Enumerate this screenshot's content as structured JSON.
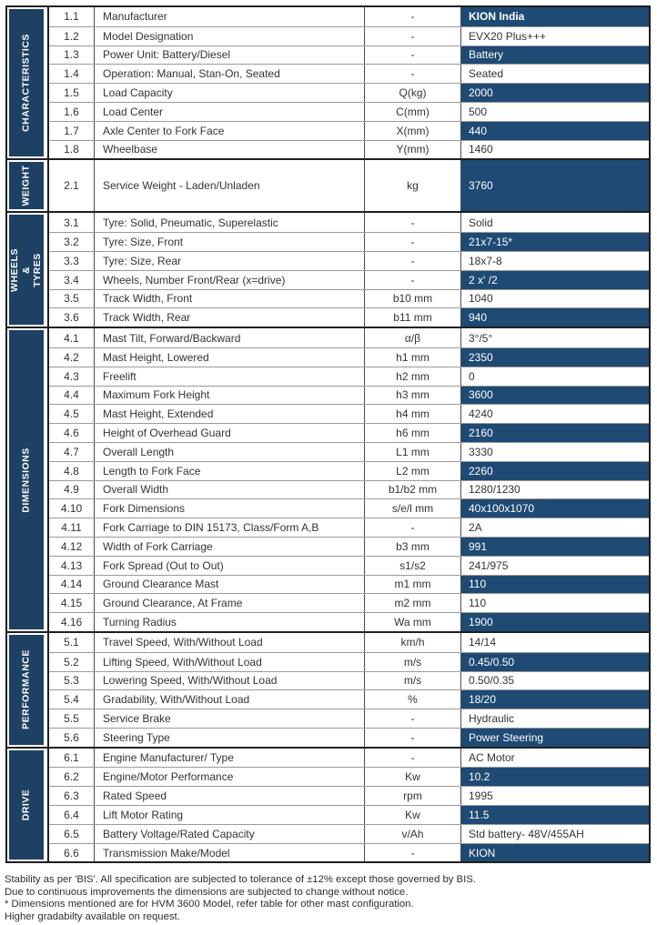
{
  "colors": {
    "sidebar_navy": "#1e4063",
    "value_cell_blue": "#1e4a74",
    "border_dark": "#1f1f1f",
    "row_divider_gray": "#9a9a9a",
    "text": "#333333"
  },
  "sections": [
    {
      "label": "CHARACTERISTICS",
      "rows": [
        {
          "num": "1.1",
          "label": "Manufacturer",
          "unit": "-",
          "value": "KION India",
          "highlight": true,
          "bold": true
        },
        {
          "num": "1.2",
          "label": "Model Designation",
          "unit": "-",
          "value": "EVX20 Plus+++",
          "highlight": false
        },
        {
          "num": "1.3",
          "label": "Power Unit: Battery/Diesel",
          "unit": "-",
          "value": "Battery",
          "highlight": true
        },
        {
          "num": "1.4",
          "label": "Operation: Manual, Stan-On, Seated",
          "unit": "-",
          "value": "Seated",
          "highlight": false
        },
        {
          "num": "1.5",
          "label": "Load Capacity",
          "unit": "Q(kg)",
          "value": "2000",
          "highlight": true
        },
        {
          "num": "1.6",
          "label": "Load Center",
          "unit": "C(mm)",
          "value": "500",
          "highlight": false
        },
        {
          "num": "1.7",
          "label": "Axle Center to Fork Face",
          "unit": "X(mm)",
          "value": "440",
          "highlight": true
        },
        {
          "num": "1.8",
          "label": "Wheelbase",
          "unit": "Y(mm)",
          "value": "1460",
          "highlight": false
        }
      ]
    },
    {
      "label": "WEIGHT",
      "rows": [
        {
          "num": "2.1",
          "label": "Service Weight - Laden/Unladen",
          "unit": "kg",
          "value": "3760",
          "highlight": true,
          "tall": true
        }
      ]
    },
    {
      "label": "WHEELS &\nTYRES",
      "rows": [
        {
          "num": "3.1",
          "label": "Tyre: Solid, Pneumatic, Superelastic",
          "unit": "-",
          "value": "Solid",
          "highlight": false
        },
        {
          "num": "3.2",
          "label": "Tyre: Size, Front",
          "unit": "-",
          "value": "21x7-15*",
          "highlight": true
        },
        {
          "num": "3.3",
          "label": "Tyre: Size, Rear",
          "unit": "-",
          "value": "18x7-8",
          "highlight": false
        },
        {
          "num": "3.4",
          "label": "Wheels, Number Front/Rear (x=drive)",
          "unit": "-",
          "value": "2 x' /2",
          "highlight": true
        },
        {
          "num": "3.5",
          "label": "Track Width, Front",
          "unit": "b10 mm",
          "value": "1040",
          "highlight": false
        },
        {
          "num": "3.6",
          "label": "Track Width, Rear",
          "unit": "b11 mm",
          "value": "940",
          "highlight": true
        }
      ]
    },
    {
      "label": "DIMENSIONS",
      "rows": [
        {
          "num": "4.1",
          "label": "Mast Tilt, Forward/Backward",
          "unit": "α/β",
          "value": "3°/5°",
          "highlight": false
        },
        {
          "num": "4.2",
          "label": "Mast Height, Lowered",
          "unit": "h1 mm",
          "value": "2350",
          "highlight": true
        },
        {
          "num": "4.3",
          "label": "Freelift",
          "unit": "h2 mm",
          "value": "0",
          "highlight": false
        },
        {
          "num": "4.4",
          "label": "Maximum Fork Height",
          "unit": "h3 mm",
          "value": "3600",
          "highlight": true
        },
        {
          "num": "4.5",
          "label": "Mast Height, Extended",
          "unit": "h4 mm",
          "value": "4240",
          "highlight": false
        },
        {
          "num": "4.6",
          "label": "Height of Overhead Guard",
          "unit": "h6 mm",
          "value": "2160",
          "highlight": true
        },
        {
          "num": "4.7",
          "label": "Overall Length",
          "unit": "L1 mm",
          "value": "3330",
          "highlight": false
        },
        {
          "num": "4.8",
          "label": "Length to Fork Face",
          "unit": "L2 mm",
          "value": "2260",
          "highlight": true
        },
        {
          "num": "4.9",
          "label": "Overall Width",
          "unit": "b1/b2 mm",
          "value": "1280/1230",
          "highlight": false
        },
        {
          "num": "4.10",
          "label": "Fork Dimensions",
          "unit": "s/e/l mm",
          "value": "40x100x1070",
          "highlight": true
        },
        {
          "num": "4.11",
          "label": "Fork Carriage to DIN 15173, Class/Form A,B",
          "unit": "-",
          "value": "2A",
          "highlight": false
        },
        {
          "num": "4.12",
          "label": "Width of Fork Carriage",
          "unit": "b3 mm",
          "value": "991",
          "highlight": true
        },
        {
          "num": "4.13",
          "label": "Fork Spread (Out to Out)",
          "unit": "s1/s2",
          "value": "241/975",
          "highlight": false
        },
        {
          "num": "4.14",
          "label": "Ground Clearance Mast",
          "unit": "m1 mm",
          "value": "110",
          "highlight": true
        },
        {
          "num": "4.15",
          "label": "Ground Clearance, At Frame",
          "unit": "m2 mm",
          "value": "110",
          "highlight": false
        },
        {
          "num": "4.16",
          "label": "Turning Radius",
          "unit": "Wa mm",
          "value": "1900",
          "highlight": true
        }
      ]
    },
    {
      "label": "PERFORMANCE",
      "rows": [
        {
          "num": "5.1",
          "label": "Travel Speed, With/Without Load",
          "unit": "km/h",
          "value": "14/14",
          "highlight": false
        },
        {
          "num": "5.2",
          "label": "Lifting Speed, With/Without Load",
          "unit": "m/s",
          "value": "0.45/0.50",
          "highlight": true
        },
        {
          "num": "5.3",
          "label": "Lowering Speed, With/Without Load",
          "unit": "m/s",
          "value": "0.50/0.35",
          "highlight": false
        },
        {
          "num": "5.4",
          "label": "Gradability, With/Without Load",
          "unit": "%",
          "value": "18/20",
          "highlight": true
        },
        {
          "num": "5.5",
          "label": "Service Brake",
          "unit": "-",
          "value": "Hydraulic",
          "highlight": false
        },
        {
          "num": "5.6",
          "label": "Steering Type",
          "unit": "-",
          "value": "Power Steering",
          "highlight": true
        }
      ]
    },
    {
      "label": "DRIVE",
      "rows": [
        {
          "num": "6.1",
          "label": "Engine Manufacturer/ Type",
          "unit": "-",
          "value": "AC Motor",
          "highlight": false
        },
        {
          "num": "6.2",
          "label": "Engine/Motor Performance",
          "unit": "Kw",
          "value": "10.2",
          "highlight": true
        },
        {
          "num": "6.3",
          "label": "Rated Speed",
          "unit": "rpm",
          "value": "1995",
          "highlight": false
        },
        {
          "num": "6.4",
          "label": "Lift Motor Rating",
          "unit": "Kw",
          "value": "11.5",
          "highlight": true
        },
        {
          "num": "6.5",
          "label": "Battery Voltage/Rated Capacity",
          "unit": "v/Ah",
          "value": "Std battery- 48V/455AH",
          "highlight": false
        },
        {
          "num": "6.6",
          "label": "Transmission Make/Model",
          "unit": "-",
          "value": "KION",
          "highlight": true
        }
      ]
    }
  ],
  "footer_notes": [
    "Stability as per 'BIS'. All specification are subjected to tolerance of ±12% except those governed by BIS.",
    "Due to continuous improvements the dimensions are subjected to change without notice.",
    "* Dimensions mentioned are for HVM 3600 Model, refer table for other mast configuration.",
    "Higher gradabilty available on request."
  ]
}
